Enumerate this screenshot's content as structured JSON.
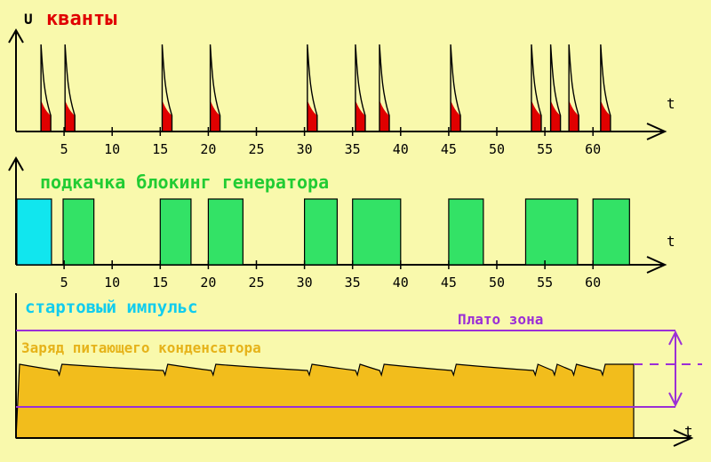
{
  "colors": {
    "background": "#f9f9ac",
    "quanta": "#e00000",
    "pumping": "#33e266",
    "start_pulse": "#11e6ee",
    "capacitor_fill": "#f2bd1c",
    "capacitor_label": "#e6b31a",
    "plateau": "#9b2fd6",
    "axis": "#000000",
    "label_red": "#e00000",
    "label_green": "#22cc33",
    "label_cyan": "#11ccee"
  },
  "panel1": {
    "y_axis_label": "U",
    "title": "кванты",
    "t_label": "t",
    "ticks": [
      "5",
      "10",
      "15",
      "20",
      "25",
      "30",
      "35",
      "40",
      "45",
      "50",
      "55",
      "60"
    ],
    "quanta_times": [
      2.6,
      5.1,
      15.2,
      20.2,
      30.3,
      35.3,
      37.8,
      45.2,
      53.6,
      55.6,
      57.5,
      60.8
    ]
  },
  "panel2": {
    "title": "подкачка блокинг генератора",
    "t_label": "t",
    "ticks": [
      "5",
      "10",
      "15",
      "20",
      "25",
      "30",
      "35",
      "40",
      "45",
      "50",
      "55",
      "60"
    ],
    "start_pulse": {
      "start": 0,
      "end": 3.6
    },
    "pumping_intervals": [
      [
        4.9,
        8.1
      ],
      [
        15.0,
        18.2
      ],
      [
        20.0,
        23.6
      ],
      [
        30.0,
        33.4
      ],
      [
        35.0,
        40.0
      ],
      [
        45.0,
        48.6
      ],
      [
        53.0,
        58.4
      ],
      [
        60.0,
        63.8
      ]
    ],
    "start_pulse_label": "стартовый импульс"
  },
  "panel3": {
    "capacitor_label": "Заряд питающего конденсатора",
    "plateau_label": "Плато зона",
    "t_label": "t",
    "dip_times": [
      4.5,
      15.5,
      20.5,
      30.5,
      35.5,
      38,
      45.5,
      54,
      56,
      58,
      61
    ]
  }
}
